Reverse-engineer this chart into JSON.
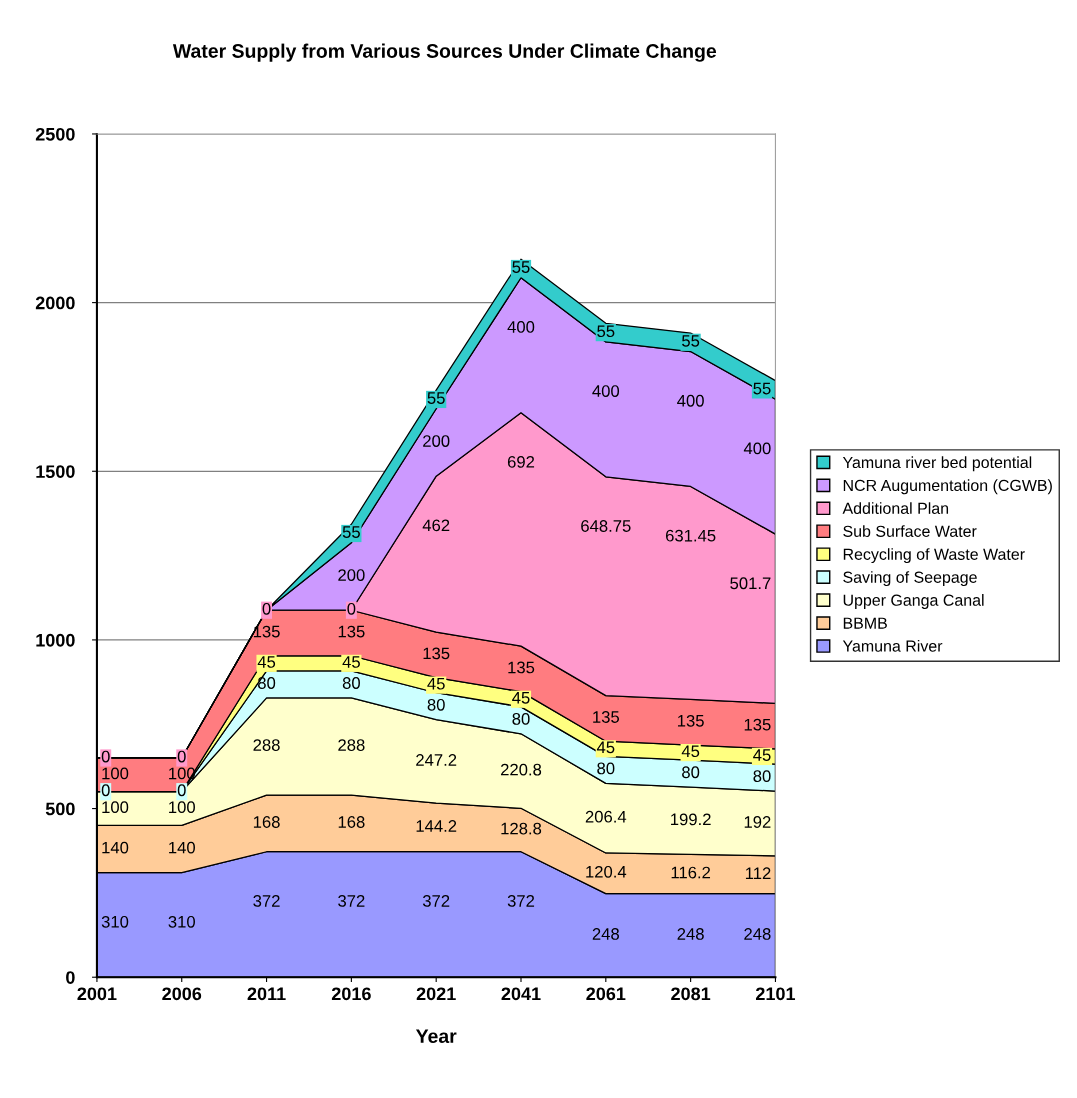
{
  "chart_data": {
    "type": "area",
    "stacked": true,
    "title": "Water Supply from Various Sources Under Climate Change",
    "xlabel": "Year",
    "categories": [
      "2001",
      "2006",
      "2011",
      "2016",
      "2021",
      "2041",
      "2061",
      "2081",
      "2101"
    ],
    "ylim": [
      0,
      2500
    ],
    "yticks": [
      0,
      500,
      1000,
      1500,
      2000,
      2500
    ],
    "grid": "y",
    "legend": "right",
    "series": [
      {
        "name": "Yamuna River",
        "color": "#9999ff",
        "values": [
          310,
          310,
          372,
          372,
          372,
          372,
          248,
          248,
          248
        ],
        "value_labels": [
          "310",
          "310",
          "372",
          "372",
          "372",
          "372",
          "248",
          "248",
          "248"
        ]
      },
      {
        "name": "BBMB",
        "color": "#ffcc99",
        "values": [
          140,
          140,
          168,
          168,
          144.2,
          128.8,
          120.4,
          116.2,
          112
        ],
        "value_labels": [
          "140",
          "140",
          "168",
          "168",
          "144.2",
          "128.8",
          "120.4",
          "116.2",
          "112"
        ]
      },
      {
        "name": "Upper Ganga Canal",
        "color": "#ffffcc",
        "values": [
          100,
          100,
          288,
          288,
          247.2,
          220.8,
          206.4,
          199.2,
          192
        ],
        "value_labels": [
          "100",
          "100",
          "288",
          "288",
          "247.2",
          "220.8",
          "206.4",
          "199.2",
          "192"
        ]
      },
      {
        "name": "Saving of Seepage",
        "color": "#ccffff",
        "values": [
          0,
          0,
          80,
          80,
          80,
          80,
          80,
          80,
          80
        ],
        "value_labels": [
          "0",
          "0",
          "80",
          "80",
          "80",
          "80",
          "80",
          "80",
          "80"
        ]
      },
      {
        "name": "Recycling of Waste Water",
        "color": "#ffff80",
        "values": [
          0,
          0,
          45,
          45,
          45,
          45,
          45,
          45,
          45
        ],
        "value_labels": [
          null,
          null,
          "45",
          "45",
          "45",
          "45",
          "45",
          "45",
          "45"
        ]
      },
      {
        "name": "Sub Surface Water",
        "color": "#ff7c80",
        "values": [
          100,
          100,
          135,
          135,
          135,
          135,
          135,
          135,
          135
        ],
        "value_labels": [
          "100",
          "100",
          "135",
          "135",
          "135",
          "135",
          "135",
          "135",
          "135"
        ]
      },
      {
        "name": "Additional Plan",
        "color": "#ff99cc",
        "values": [
          0,
          0,
          0,
          0,
          462,
          692,
          648.75,
          631.45,
          501.7
        ],
        "value_labels": [
          "0",
          "0",
          "0",
          "0",
          "462",
          "692",
          "648.75",
          "631.45",
          "501.7"
        ]
      },
      {
        "name": "NCR Augumentation (CGWB)",
        "color": "#cc99ff",
        "values": [
          0,
          0,
          0,
          200,
          200,
          400,
          400,
          400,
          400
        ],
        "value_labels": [
          null,
          null,
          null,
          "200",
          "200",
          "400",
          "400",
          "400",
          "400"
        ]
      },
      {
        "name": "Yamuna river bed potential",
        "color": "#33cccc",
        "values": [
          0,
          0,
          0,
          55,
          55,
          55,
          55,
          55,
          55
        ],
        "value_labels": [
          null,
          null,
          null,
          "55",
          "55",
          "55",
          "55",
          "55",
          "55"
        ]
      }
    ]
  }
}
